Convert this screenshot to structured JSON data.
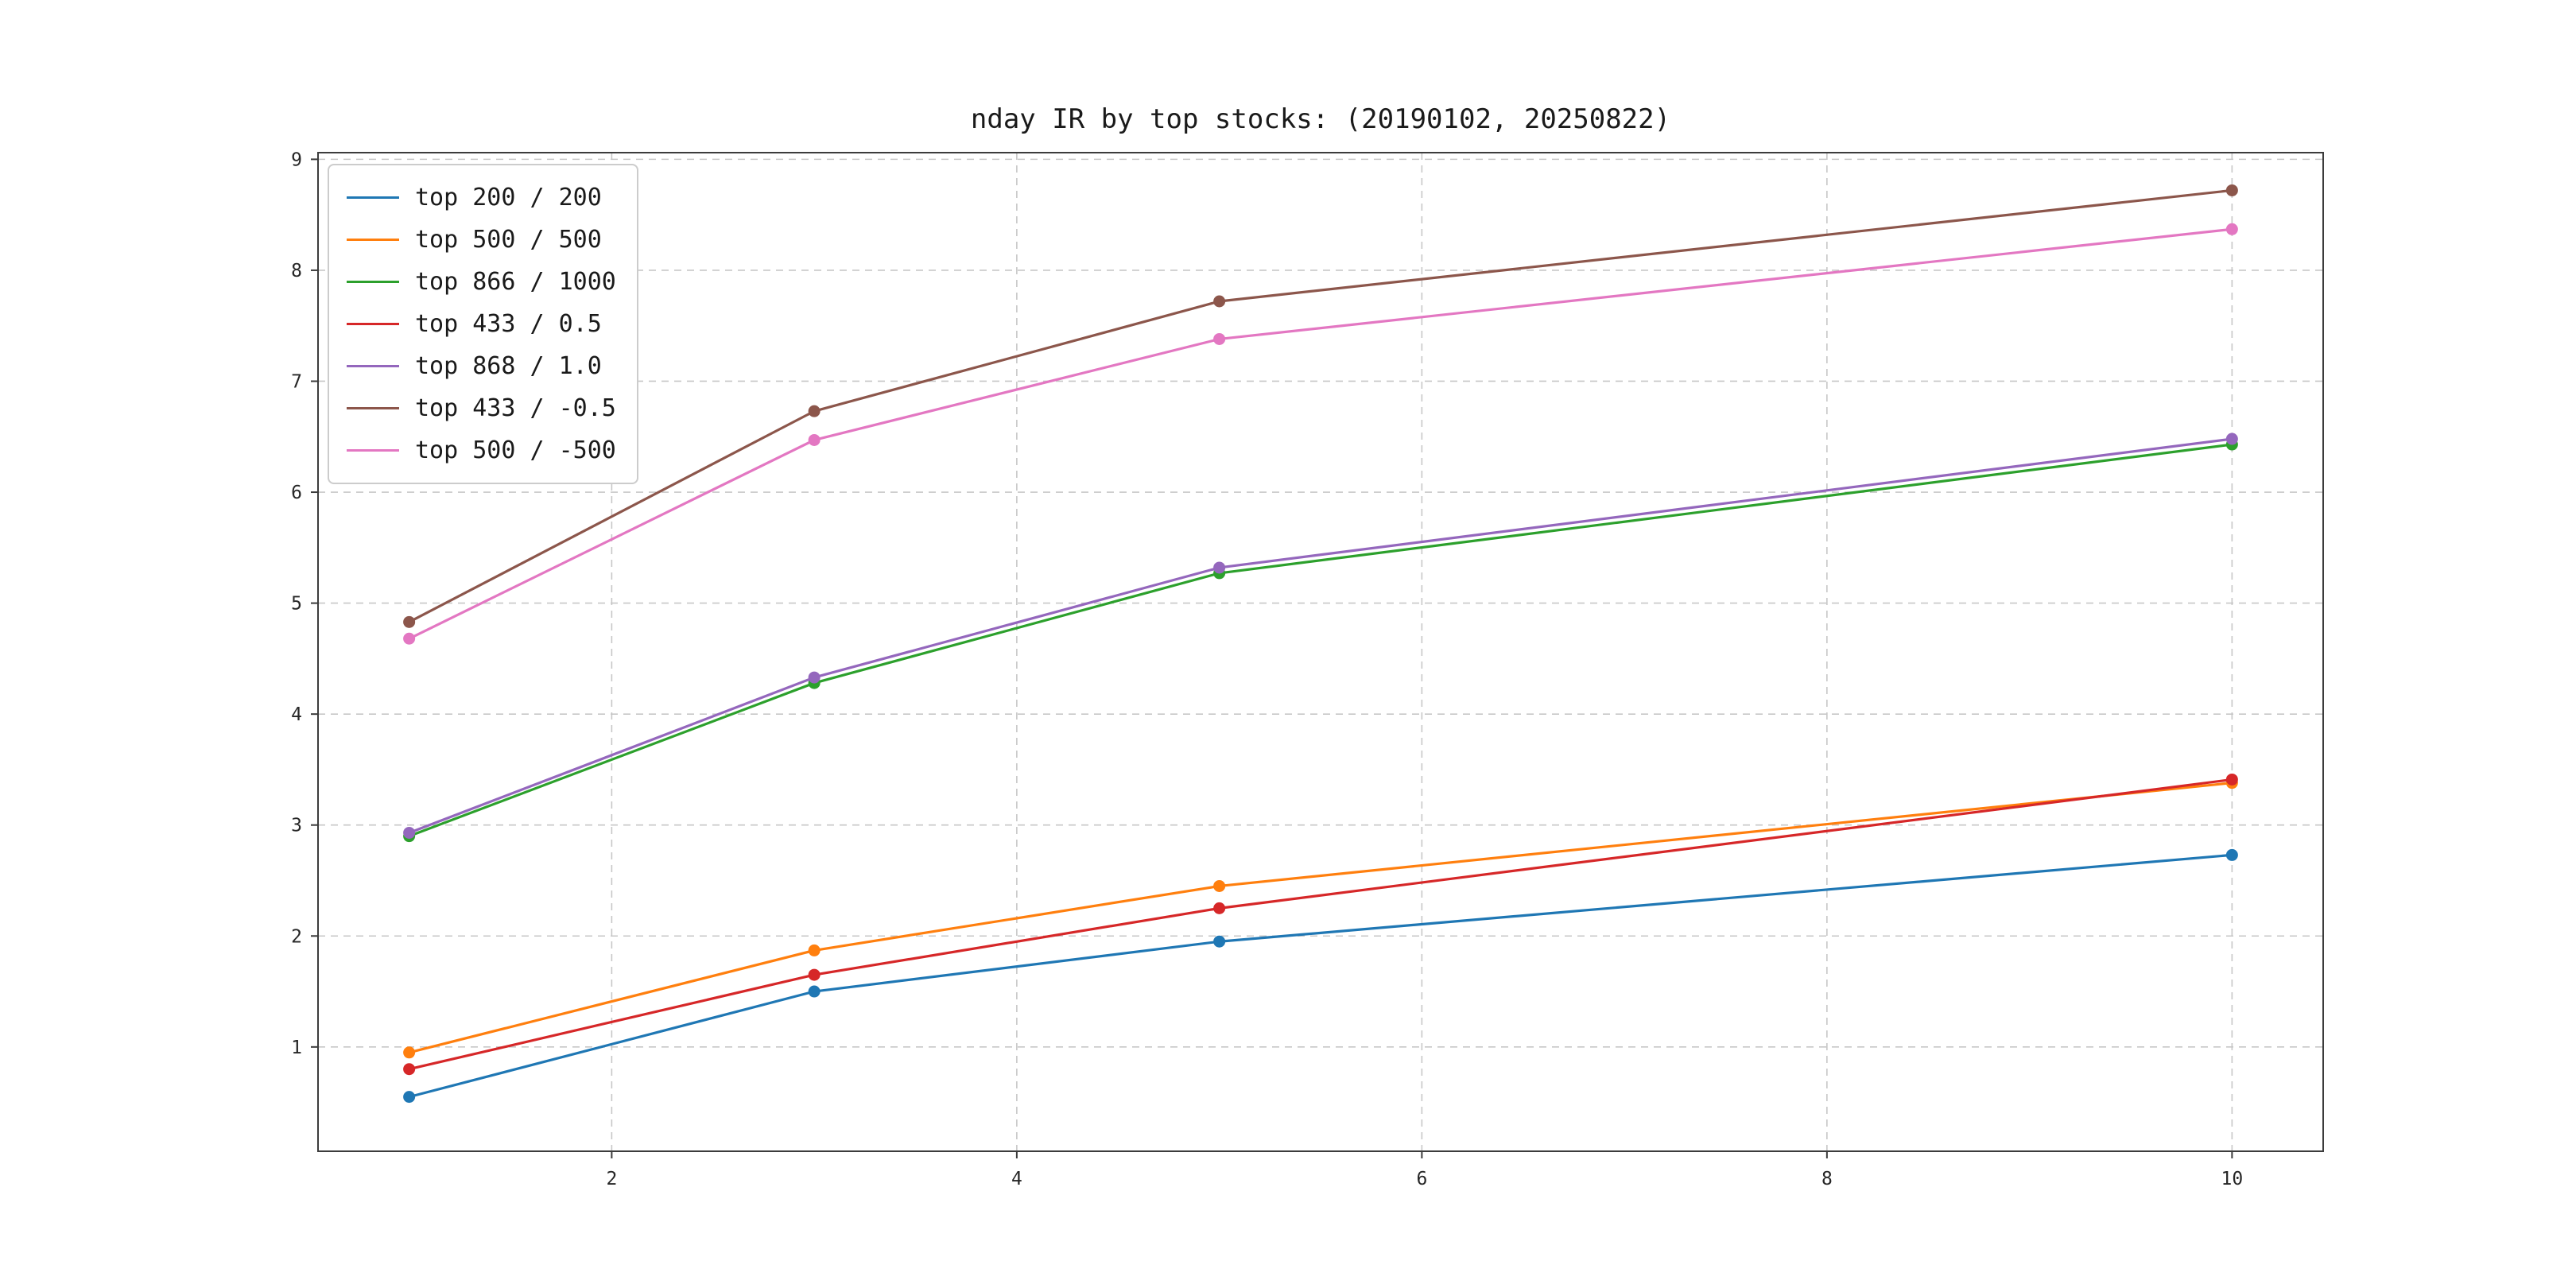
{
  "chart_data": {
    "type": "line",
    "title": "nday IR by top stocks: (20190102, 20250822)",
    "x": [
      1,
      3,
      5,
      10
    ],
    "series": [
      {
        "name": "top 200 / 200",
        "color": "#1f77b4",
        "values": [
          0.55,
          1.5,
          1.95,
          2.73
        ]
      },
      {
        "name": "top 500 / 500",
        "color": "#ff7f0e",
        "values": [
          0.95,
          1.87,
          2.45,
          3.38
        ]
      },
      {
        "name": "top 866 / 1000",
        "color": "#2ca02c",
        "values": [
          2.9,
          4.28,
          5.27,
          6.43
        ]
      },
      {
        "name": "top 433 / 0.5",
        "color": "#d62728",
        "values": [
          0.8,
          1.65,
          2.25,
          3.41
        ]
      },
      {
        "name": "top 868 / 1.0",
        "color": "#9467bd",
        "values": [
          2.93,
          4.33,
          5.32,
          6.48
        ]
      },
      {
        "name": "top 433 / -0.5",
        "color": "#8c564b",
        "values": [
          4.83,
          6.73,
          7.72,
          8.72
        ]
      },
      {
        "name": "top 500 / -500",
        "color": "#e377c2",
        "values": [
          4.68,
          6.47,
          7.38,
          8.37
        ]
      }
    ],
    "xticks": [
      2,
      4,
      6,
      8,
      10
    ],
    "yticks": [
      1,
      2,
      3,
      4,
      5,
      6,
      7,
      8,
      9
    ],
    "xlim": [
      0.55,
      10.45
    ],
    "ylim": [
      0.06,
      9.06
    ],
    "xlabel": "",
    "ylabel": "",
    "grid": true,
    "legend_position": "upper left"
  }
}
